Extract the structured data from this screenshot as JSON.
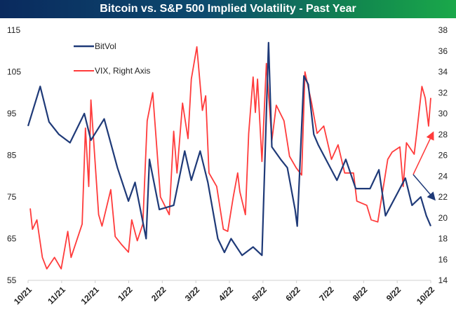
{
  "chart_data": {
    "type": "line",
    "title": "Bitcoin vs. S&P 500 Implied Volatility - Past Year",
    "x_tick_labels": [
      "10/21",
      "11/21",
      "12/21",
      "1/22",
      "2/22",
      "3/22",
      "4/22",
      "5/22",
      "6/22",
      "7/22",
      "8/22",
      "9/22",
      "10/22"
    ],
    "x_range": [
      "2021-10-01",
      "2022-10-01"
    ],
    "y_left": {
      "range": [
        55,
        115
      ],
      "ticks": [
        55,
        65,
        75,
        85,
        95,
        105,
        115
      ]
    },
    "y_right": {
      "range": [
        14,
        38
      ],
      "ticks": [
        14,
        16,
        18,
        20,
        22,
        24,
        26,
        28,
        30,
        32,
        34,
        36,
        38
      ]
    },
    "grid": false,
    "legend_placement": "top-left",
    "series": [
      {
        "name": "BitVol",
        "axis": "left",
        "color": "#1f3a78",
        "points": [
          [
            "2021-10-01",
            92
          ],
          [
            "2021-10-12",
            101.5
          ],
          [
            "2021-10-20",
            93
          ],
          [
            "2021-10-29",
            90
          ],
          [
            "2021-11-08",
            88
          ],
          [
            "2021-11-21",
            95
          ],
          [
            "2021-11-27",
            88.6
          ],
          [
            "2021-12-09",
            93.7
          ],
          [
            "2021-12-21",
            82
          ],
          [
            "2021-12-31",
            74
          ],
          [
            "2022-01-06",
            78.5
          ],
          [
            "2022-01-16",
            65
          ],
          [
            "2022-01-19",
            84
          ],
          [
            "2022-01-28",
            72
          ],
          [
            "2022-02-10",
            73
          ],
          [
            "2022-02-20",
            86
          ],
          [
            "2022-02-26",
            79
          ],
          [
            "2022-03-06",
            86
          ],
          [
            "2022-03-13",
            78.5
          ],
          [
            "2022-03-22",
            65
          ],
          [
            "2022-03-28",
            61.7
          ],
          [
            "2022-04-03",
            65
          ],
          [
            "2022-04-13",
            61
          ],
          [
            "2022-04-23",
            63
          ],
          [
            "2022-05-01",
            61
          ],
          [
            "2022-05-07",
            112
          ],
          [
            "2022-05-10",
            87
          ],
          [
            "2022-05-18",
            84
          ],
          [
            "2022-05-24",
            82
          ],
          [
            "2022-05-31",
            72
          ],
          [
            "2022-06-02",
            68
          ],
          [
            "2022-06-08",
            104
          ],
          [
            "2022-06-12",
            102
          ],
          [
            "2022-06-17",
            90
          ],
          [
            "2022-06-21",
            87.5
          ],
          [
            "2022-06-30",
            83
          ],
          [
            "2022-07-08",
            79
          ],
          [
            "2022-07-16",
            84
          ],
          [
            "2022-07-25",
            77
          ],
          [
            "2022-08-07",
            77
          ],
          [
            "2022-08-15",
            81.5
          ],
          [
            "2022-08-21",
            70.5
          ],
          [
            "2022-09-01",
            76
          ],
          [
            "2022-09-08",
            79.5
          ],
          [
            "2022-09-14",
            73
          ],
          [
            "2022-09-22",
            75
          ],
          [
            "2022-09-27",
            70.5
          ],
          [
            "2022-10-01",
            68
          ]
        ]
      },
      {
        "name": "VIX, Right Axis",
        "axis": "right",
        "color": "#ff3b3b",
        "points": [
          [
            "2021-10-03",
            20.9
          ],
          [
            "2021-10-05",
            18.9
          ],
          [
            "2021-10-09",
            19.8
          ],
          [
            "2021-10-14",
            16.2
          ],
          [
            "2021-10-18",
            15.1
          ],
          [
            "2021-10-25",
            16.2
          ],
          [
            "2021-10-31",
            15.1
          ],
          [
            "2021-11-06",
            18.7
          ],
          [
            "2021-11-09",
            16.2
          ],
          [
            "2021-11-19",
            19.4
          ],
          [
            "2021-11-22",
            28.6
          ],
          [
            "2021-11-25",
            23
          ],
          [
            "2021-11-27",
            31.3
          ],
          [
            "2021-12-04",
            20.3
          ],
          [
            "2021-12-07",
            19.2
          ],
          [
            "2021-12-15",
            22.7
          ],
          [
            "2021-12-19",
            18.2
          ],
          [
            "2021-12-25",
            17.4
          ],
          [
            "2021-12-31",
            16.7
          ],
          [
            "2022-01-03",
            19.8
          ],
          [
            "2022-01-08",
            17.8
          ],
          [
            "2022-01-13",
            19.4
          ],
          [
            "2022-01-17",
            29.3
          ],
          [
            "2022-01-22",
            32
          ],
          [
            "2022-01-29",
            22
          ],
          [
            "2022-02-06",
            20.3
          ],
          [
            "2022-02-10",
            28.3
          ],
          [
            "2022-02-13",
            24.3
          ],
          [
            "2022-02-18",
            31
          ],
          [
            "2022-02-23",
            27.6
          ],
          [
            "2022-02-26",
            33.3
          ],
          [
            "2022-03-03",
            36.4
          ],
          [
            "2022-03-08",
            30.3
          ],
          [
            "2022-03-11",
            31.7
          ],
          [
            "2022-03-14",
            24.3
          ],
          [
            "2022-03-21",
            23
          ],
          [
            "2022-03-27",
            18.9
          ],
          [
            "2022-03-31",
            18.7
          ],
          [
            "2022-04-05",
            22
          ],
          [
            "2022-04-09",
            24.3
          ],
          [
            "2022-04-11",
            22.5
          ],
          [
            "2022-04-16",
            20.3
          ],
          [
            "2022-04-19",
            28.1
          ],
          [
            "2022-04-23",
            33.5
          ],
          [
            "2022-04-25",
            30.1
          ],
          [
            "2022-04-27",
            33.3
          ],
          [
            "2022-05-01",
            25.4
          ],
          [
            "2022-05-05",
            34.8
          ],
          [
            "2022-05-10",
            27.4
          ],
          [
            "2022-05-14",
            30.8
          ],
          [
            "2022-05-21",
            29.3
          ],
          [
            "2022-05-26",
            25.9
          ],
          [
            "2022-06-01",
            24.8
          ],
          [
            "2022-06-06",
            24.1
          ],
          [
            "2022-06-09",
            34
          ],
          [
            "2022-06-15",
            31
          ],
          [
            "2022-06-20",
            28.1
          ],
          [
            "2022-06-26",
            28.8
          ],
          [
            "2022-07-03",
            25.6
          ],
          [
            "2022-07-09",
            27
          ],
          [
            "2022-07-15",
            24.3
          ],
          [
            "2022-07-23",
            24.3
          ],
          [
            "2022-07-26",
            21.6
          ],
          [
            "2022-08-04",
            21.2
          ],
          [
            "2022-08-08",
            19.8
          ],
          [
            "2022-08-14",
            19.6
          ],
          [
            "2022-08-23",
            25.6
          ],
          [
            "2022-08-27",
            26.3
          ],
          [
            "2022-09-03",
            26.8
          ],
          [
            "2022-09-06",
            23
          ],
          [
            "2022-09-09",
            27.2
          ],
          [
            "2022-09-16",
            26.1
          ],
          [
            "2022-09-18",
            27.9
          ],
          [
            "2022-09-23",
            32.6
          ],
          [
            "2022-09-26",
            31.5
          ],
          [
            "2022-09-29",
            28.8
          ],
          [
            "2022-10-01",
            31.5
          ]
        ]
      }
    ],
    "annotations": [
      {
        "type": "arrow",
        "color": "#ff3b3b",
        "direction": "up-right"
      },
      {
        "type": "arrow",
        "color": "#1f3a78",
        "direction": "down-right"
      }
    ]
  }
}
